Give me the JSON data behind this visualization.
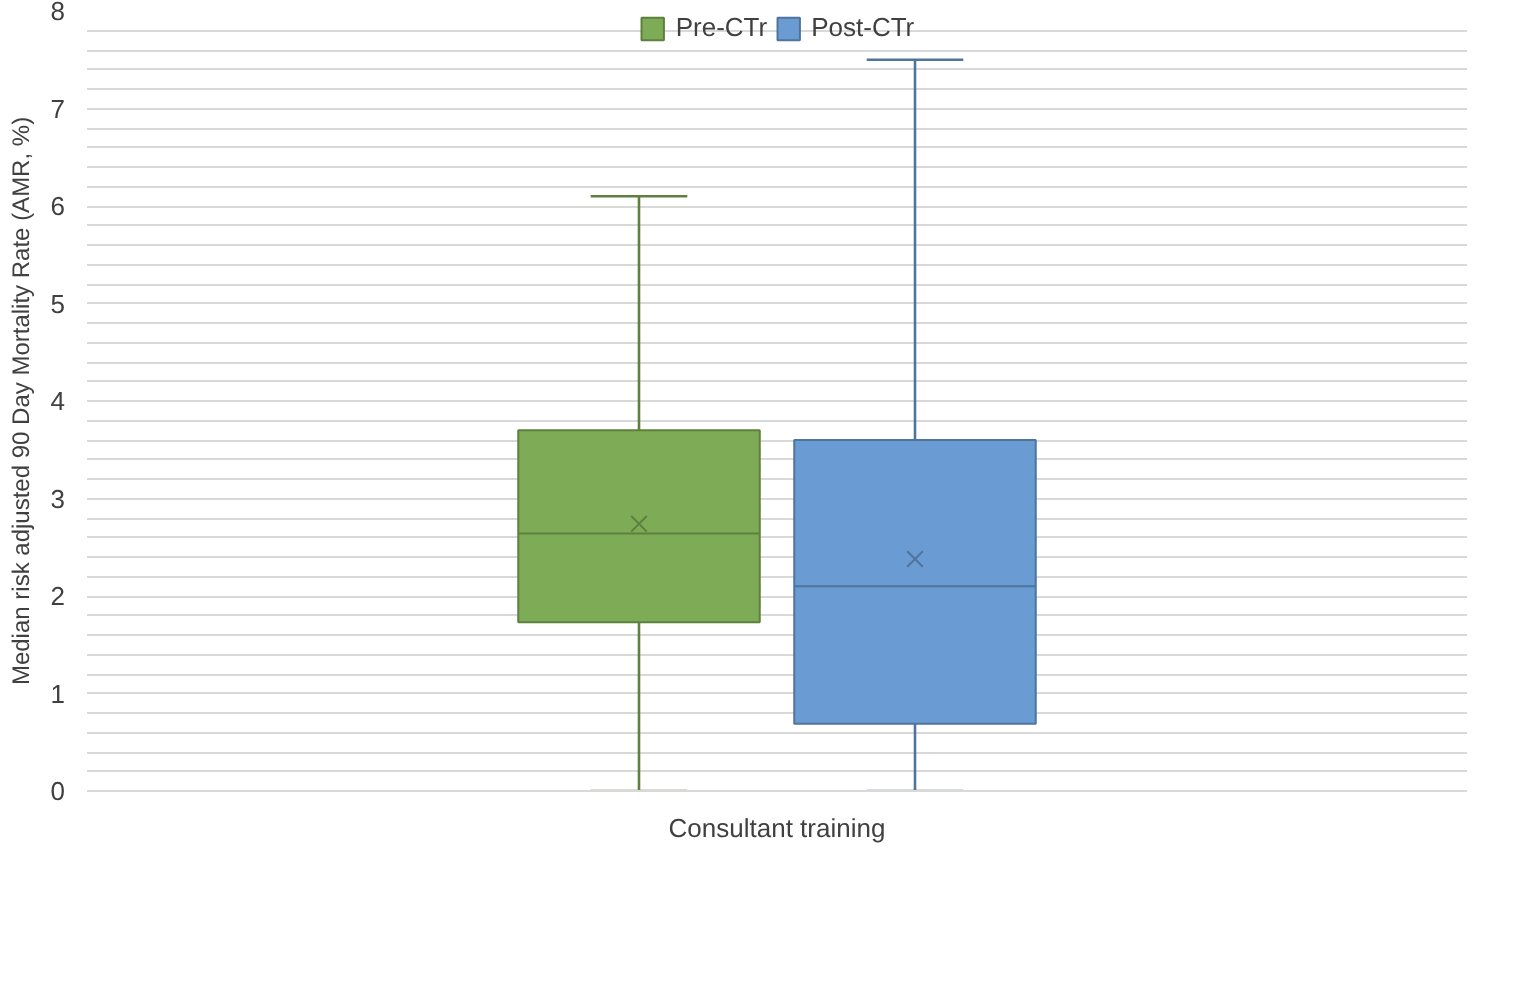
{
  "chart_data": {
    "type": "box",
    "ylabel": "Median risk adjusted 90 Day Mortality Rate (AMR, %)",
    "categories": [
      "Consultant training"
    ],
    "ylim": [
      0,
      8
    ],
    "yticks": [
      0,
      {
        "value": 0.2,
        "label": null
      },
      {
        "value": 0.4,
        "label": null
      },
      {
        "value": 0.6,
        "label": null
      },
      {
        "value": 0.8,
        "label": null
      },
      1,
      {
        "value": 1.2,
        "label": null
      },
      {
        "value": 1.4,
        "label": null
      },
      {
        "value": 1.6,
        "label": null
      },
      {
        "value": 1.8,
        "label": null
      },
      2,
      {
        "value": 2.2,
        "label": null
      },
      {
        "value": 2.4,
        "label": null
      },
      {
        "value": 2.6,
        "label": null
      },
      {
        "value": 2.8,
        "label": null
      },
      3,
      {
        "value": 3.2,
        "label": null
      },
      {
        "value": 3.4,
        "label": null
      },
      {
        "value": 3.6,
        "label": null
      },
      {
        "value": 3.8,
        "label": null
      },
      4,
      {
        "value": 4.2,
        "label": null
      },
      {
        "value": 4.4,
        "label": null
      },
      {
        "value": 4.6,
        "label": null
      },
      {
        "value": 4.8,
        "label": null
      },
      5,
      {
        "value": 5.2,
        "label": null
      },
      {
        "value": 5.4,
        "label": null
      },
      {
        "value": 5.6,
        "label": null
      },
      {
        "value": 5.8,
        "label": null
      },
      6,
      {
        "value": 6.2,
        "label": null
      },
      {
        "value": 6.4,
        "label": null
      },
      {
        "value": 6.6,
        "label": null
      },
      {
        "value": 6.8,
        "label": null
      },
      7,
      {
        "value": 7.2,
        "label": null
      },
      {
        "value": 7.4,
        "label": null
      },
      {
        "value": 7.6,
        "label": null
      },
      {
        "value": 7.8,
        "label": null
      },
      8
    ],
    "grid": "y",
    "legend": "top",
    "series": [
      {
        "name": "Pre-CTr",
        "color": "#7eab55",
        "boxes": [
          {
            "low": 0,
            "q1": 1.73,
            "median": 2.64,
            "q3": 3.7,
            "high": 6.1,
            "mean": 2.74
          }
        ]
      },
      {
        "name": "Post-CTr",
        "color": "#6a9bd2",
        "boxes": [
          {
            "low": 0,
            "q1": 0.69,
            "median": 2.1,
            "q3": 3.6,
            "high": 7.5,
            "mean": 2.38
          }
        ]
      }
    ]
  }
}
